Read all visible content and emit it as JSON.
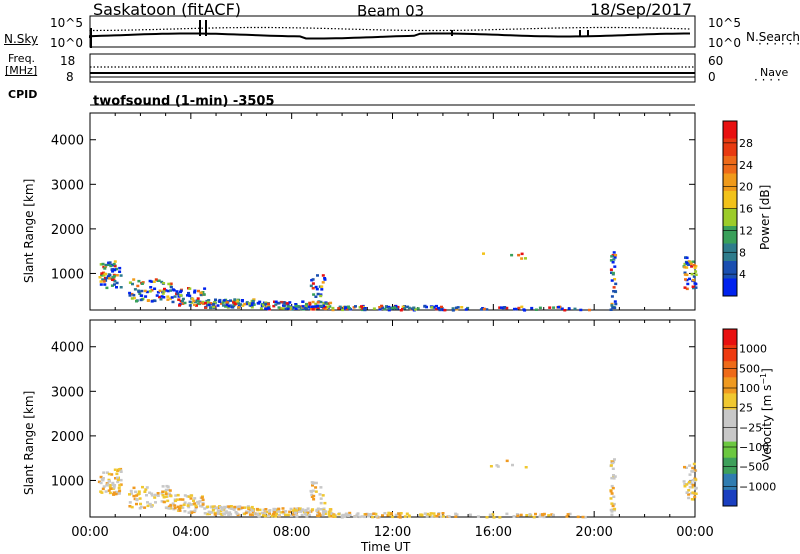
{
  "header": {
    "station": "Saskatoon (fitACF)",
    "beam": "Beam 03",
    "date": "18/Sep/2017"
  },
  "top_panels": {
    "nsky_label": "N.Sky",
    "nsky_ticks": [
      "10^5",
      "10^0"
    ],
    "nsearch_label": "N.Search",
    "nsearch_ticks": [
      "10^5",
      "10^0"
    ],
    "freq_label_1": "Freq.",
    "freq_label_2": "[MHz]",
    "freq_ticks": [
      "18",
      "8"
    ],
    "nave_label": "Nave",
    "nave_ticks": [
      "60",
      "0"
    ],
    "cpid_label": "CPID",
    "program": "twofsound (1-min) -3505"
  },
  "chart_data": [
    {
      "type": "heatmap",
      "name": "power",
      "ylabel": "Slant Range [km]",
      "ylim": [
        180,
        4600
      ],
      "yticks": [
        1000,
        2000,
        3000,
        4000
      ],
      "xlim": [
        0,
        24
      ],
      "colorbar": {
        "label": "Power [dB]",
        "ticks": [
          "28",
          "24",
          "20",
          "16",
          "12",
          "8",
          "4"
        ],
        "colors": [
          "#0022ee",
          "#1a4fb0",
          "#2e7c8c",
          "#39a05a",
          "#9ccc2a",
          "#f2c21a",
          "#f09a1a",
          "#ee6a18",
          "#e83a10",
          "#e81010"
        ]
      }
    },
    {
      "type": "heatmap",
      "name": "velocity",
      "ylabel": "Slant Range [km]",
      "ylim": [
        180,
        4600
      ],
      "yticks": [
        1000,
        2000,
        3000,
        4000
      ],
      "xlim": [
        0,
        24
      ],
      "xticks": [
        "00:00",
        "04:00",
        "08:00",
        "12:00",
        "16:00",
        "20:00",
        "00:00"
      ],
      "xlabel": "Time UT",
      "colorbar": {
        "label": "Velocity [m s^-1]",
        "ticks": [
          "1000",
          "500",
          "100",
          "25",
          "−25",
          "−100",
          "−500",
          "−1000"
        ],
        "colors": [
          "#1a3fc0",
          "#2f7cb0",
          "#3da05a",
          "#6cc840",
          "#c8c8c8",
          "#c8c8c8",
          "#f0c830",
          "#f09a20",
          "#ee6a18",
          "#ee3a10",
          "#e81010"
        ]
      }
    }
  ]
}
